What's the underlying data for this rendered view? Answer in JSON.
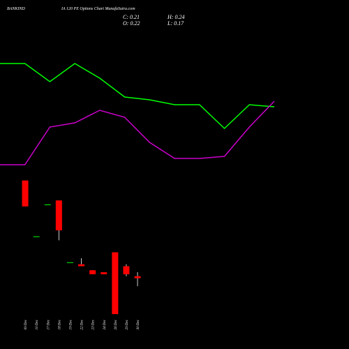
{
  "chart_data": [
    {
      "type": "line",
      "title": "BANKIND",
      "subtitle": "IA 120 PE Options Chart MunafaSutra.com",
      "ohlc_text": [
        "C: 0.21",
        "H: 0.24",
        "O: 0.22",
        "L: 0.17"
      ],
      "ylim": [
        0,
        100
      ],
      "series": [
        {
          "color": "#00ff00",
          "values": [
            79.5,
            79.5,
            66.5,
            79.5,
            69,
            55.5,
            53.5,
            50,
            50,
            33,
            50,
            48.5
          ]
        },
        {
          "color": "#cc00cc",
          "values": [
            7,
            7,
            34,
            37,
            46,
            41,
            23,
            11.5,
            11.5,
            13,
            34,
            52.5
          ]
        }
      ]
    },
    {
      "type": "candlestick",
      "categories": [
        "09 Dec",
        "10 Dec",
        "17 Dec",
        "18 Dec",
        "19 Dec",
        "22 Dec",
        "23 Dec",
        "24 Dec",
        "26 Dec",
        "29 Dec",
        "30 Dec"
      ],
      "open": [
        0.7,
        0.42,
        0.58,
        0.6,
        0.29,
        0.28,
        0.25,
        0.24,
        0.34,
        0.27,
        0.22
      ],
      "high": [
        0.7,
        0.42,
        0.58,
        0.6,
        0.29,
        0.31,
        0.25,
        0.24,
        0.34,
        0.28,
        0.24
      ],
      "low": [
        0.57,
        0.42,
        0.58,
        0.4,
        0.29,
        0.27,
        0.23,
        0.23,
        0.03,
        0.22,
        0.17
      ],
      "close": [
        0.57,
        0.42,
        0.58,
        0.45,
        0.29,
        0.27,
        0.23,
        0.23,
        0.03,
        0.23,
        0.21
      ],
      "up_color": "#00ff00",
      "down_color": "#ff0000",
      "ylim": [
        0,
        0.73
      ]
    }
  ]
}
